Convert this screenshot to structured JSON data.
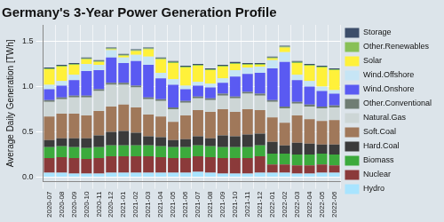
{
  "chart_data": {
    "type": "bar",
    "title": "Germany's 3-Year Power Generation Profile",
    "y_label": "Average Daily Generation [TWh]",
    "stacked": true,
    "grid": true,
    "legend": "right",
    "ylim": [
      -0.05,
      1.68
    ],
    "yticks": [
      {
        "value": 0,
        "label": "0.0"
      },
      0.5,
      {
        "value": 1,
        "label": "1.0"
      },
      1.5
    ],
    "categories": [
      "2020-07",
      "2020-08",
      "2020-09",
      "2020-10",
      "2020-11",
      "2020-12",
      "2021-01",
      "2021-02",
      "2021-03",
      "2021-04",
      "2021-05",
      "2021-06",
      "2021-07",
      "2021-08",
      "2021-09",
      "2021-10",
      "2021-11",
      "2021-12",
      "2022-01",
      "2022-02",
      "2022-03",
      "2022-04",
      "2022-05",
      "2022-06"
    ],
    "series": [
      {
        "name": "Hydro",
        "color": "#a8e4ff",
        "values": [
          0.05,
          0.05,
          0.04,
          0.04,
          0.04,
          0.05,
          0.05,
          0.05,
          0.05,
          0.05,
          0.05,
          0.05,
          0.06,
          0.05,
          0.04,
          0.04,
          0.04,
          0.05,
          0.05,
          0.05,
          0.04,
          0.04,
          0.05,
          0.05
        ]
      },
      {
        "name": "Nuclear",
        "color": "#8b3a3a",
        "values": [
          0.16,
          0.17,
          0.17,
          0.16,
          0.17,
          0.18,
          0.18,
          0.18,
          0.18,
          0.17,
          0.16,
          0.16,
          0.17,
          0.17,
          0.17,
          0.17,
          0.17,
          0.18,
          0.09,
          0.09,
          0.09,
          0.09,
          0.09,
          0.08
        ]
      },
      {
        "name": "Biomass",
        "color": "#3caa3c",
        "values": [
          0.12,
          0.12,
          0.12,
          0.12,
          0.12,
          0.12,
          0.12,
          0.12,
          0.12,
          0.12,
          0.12,
          0.12,
          0.12,
          0.12,
          0.12,
          0.12,
          0.12,
          0.12,
          0.12,
          0.12,
          0.12,
          0.12,
          0.12,
          0.12
        ]
      },
      {
        "name": "Hard.Coal",
        "color": "#3b3b3b",
        "values": [
          0.08,
          0.09,
          0.1,
          0.11,
          0.13,
          0.15,
          0.16,
          0.14,
          0.1,
          0.1,
          0.08,
          0.09,
          0.1,
          0.09,
          0.13,
          0.12,
          0.14,
          0.13,
          0.13,
          0.09,
          0.13,
          0.12,
          0.1,
          0.11
        ]
      },
      {
        "name": "Soft.Coal",
        "color": "#a0785a",
        "values": [
          0.26,
          0.27,
          0.27,
          0.25,
          0.27,
          0.28,
          0.29,
          0.28,
          0.24,
          0.23,
          0.2,
          0.26,
          0.29,
          0.29,
          0.29,
          0.27,
          0.28,
          0.26,
          0.27,
          0.25,
          0.3,
          0.27,
          0.26,
          0.27
        ]
      },
      {
        "name": "Natural.Gas",
        "color": "#cdd6d6",
        "values": [
          0.16,
          0.16,
          0.18,
          0.2,
          0.22,
          0.24,
          0.22,
          0.22,
          0.17,
          0.17,
          0.14,
          0.14,
          0.13,
          0.13,
          0.15,
          0.15,
          0.17,
          0.16,
          0.17,
          0.16,
          0.13,
          0.14,
          0.14,
          0.14
        ]
      },
      {
        "name": "Other.Conventional",
        "color": "#6f7d73",
        "values": [
          0.02,
          0.02,
          0.02,
          0.02,
          0.02,
          0.02,
          0.02,
          0.02,
          0.02,
          0.02,
          0.02,
          0.02,
          0.02,
          0.02,
          0.02,
          0.02,
          0.02,
          0.02,
          0.02,
          0.02,
          0.02,
          0.02,
          0.02,
          0.02
        ]
      },
      {
        "name": "Wind.Onshore",
        "color": "#5a5af2",
        "values": [
          0.12,
          0.13,
          0.17,
          0.27,
          0.21,
          0.28,
          0.22,
          0.27,
          0.36,
          0.23,
          0.25,
          0.13,
          0.12,
          0.12,
          0.12,
          0.22,
          0.2,
          0.23,
          0.35,
          0.49,
          0.24,
          0.2,
          0.17,
          0.13
        ]
      },
      {
        "name": "Wind.Offshore",
        "color": "#c6e5f5",
        "values": [
          0.05,
          0.05,
          0.06,
          0.08,
          0.06,
          0.08,
          0.06,
          0.07,
          0.09,
          0.06,
          0.06,
          0.04,
          0.04,
          0.04,
          0.05,
          0.07,
          0.07,
          0.07,
          0.09,
          0.11,
          0.06,
          0.06,
          0.05,
          0.04
        ]
      },
      {
        "name": "Solar",
        "color": "#fff13a",
        "values": [
          0.17,
          0.16,
          0.11,
          0.05,
          0.03,
          0.01,
          0.02,
          0.04,
          0.08,
          0.15,
          0.18,
          0.2,
          0.18,
          0.15,
          0.13,
          0.07,
          0.03,
          0.02,
          0.02,
          0.05,
          0.13,
          0.17,
          0.21,
          0.22
        ]
      },
      {
        "name": "Other.Renewables",
        "color": "#88c057",
        "values": [
          0.01,
          0.01,
          0.01,
          0.01,
          0.01,
          0.01,
          0.01,
          0.01,
          0.01,
          0.01,
          0.01,
          0.01,
          0.01,
          0.01,
          0.01,
          0.01,
          0.01,
          0.01,
          0.01,
          0.01,
          0.01,
          0.01,
          0.01,
          0.01
        ]
      },
      {
        "name": "Storage",
        "color": "#3d4e6a",
        "values": [
          0.01,
          0.01,
          0.01,
          0.01,
          0.01,
          0.01,
          0.01,
          0.01,
          0.01,
          0.01,
          0.01,
          0.01,
          0.01,
          0.01,
          0.01,
          0.01,
          0.01,
          0.01,
          0.01,
          0.01,
          0.01,
          0.01,
          0.01,
          0.01
        ]
      }
    ]
  }
}
